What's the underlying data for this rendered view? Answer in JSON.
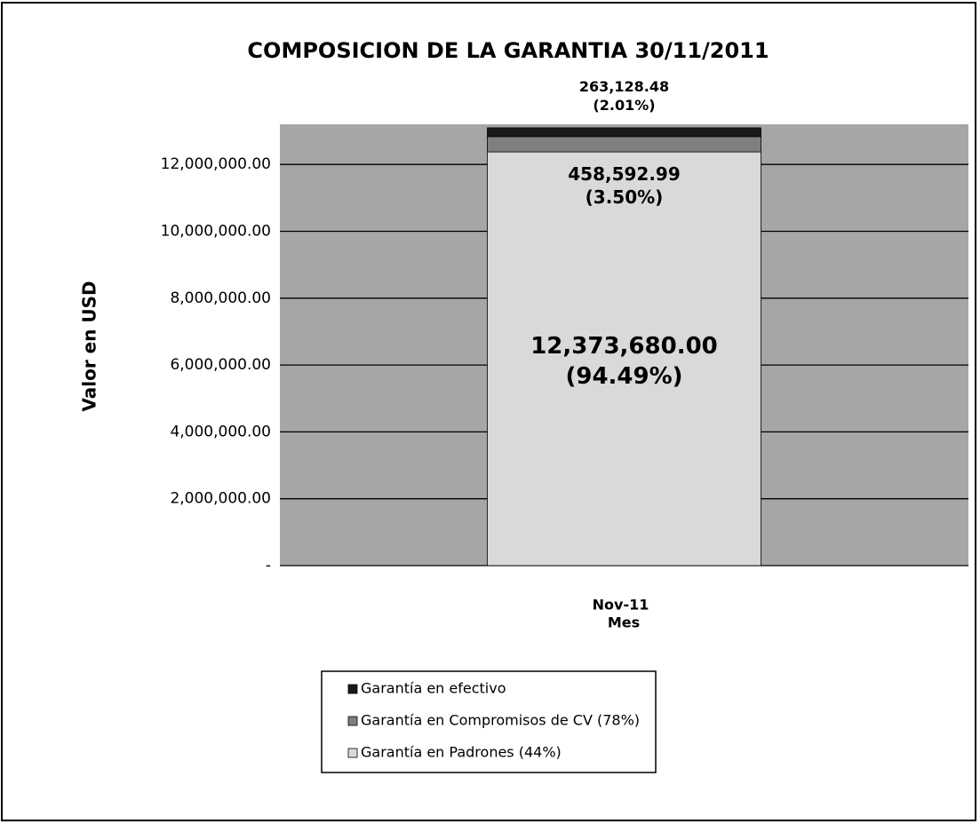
{
  "chart_data": {
    "type": "stacked_bar",
    "title": "COMPOSICION DE LA GARANTIA 30/11/2011",
    "y_label": "Valor en USD",
    "x_label": "Mes",
    "categories": [
      "Nov-11"
    ],
    "series": [
      {
        "name": "Garantía en Padrones (44%)",
        "color": "#d9d9d9",
        "values": [
          12373680.0
        ],
        "value_labels": [
          "12,373,680.00 (94.49%)"
        ]
      },
      {
        "name": "Garantía en Compromisos de CV (78%)",
        "color": "#7f7f7f",
        "values": [
          458592.99
        ],
        "value_labels": [
          "458,592.99 (3.50%)"
        ]
      },
      {
        "name": "Garantía en efectivo",
        "color": "#1a1a1a",
        "values": [
          263128.48
        ],
        "value_labels": [
          "263,128.48 (2.01%)"
        ]
      }
    ],
    "ylim": [
      0,
      13200000
    ],
    "yticks": [
      {
        "value": 0,
        "label": "-"
      },
      {
        "value": 2000000,
        "label": "2,000,000.00"
      },
      {
        "value": 4000000,
        "label": "4,000,000.00"
      },
      {
        "value": 6000000,
        "label": "6,000,000.00"
      },
      {
        "value": 8000000,
        "label": "8,000,000.00"
      },
      {
        "value": 10000000,
        "label": "10,000,000.00"
      },
      {
        "value": 12000000,
        "label": "12,000,000.00"
      }
    ],
    "grid": true,
    "background_color": "#a6a6a6"
  }
}
